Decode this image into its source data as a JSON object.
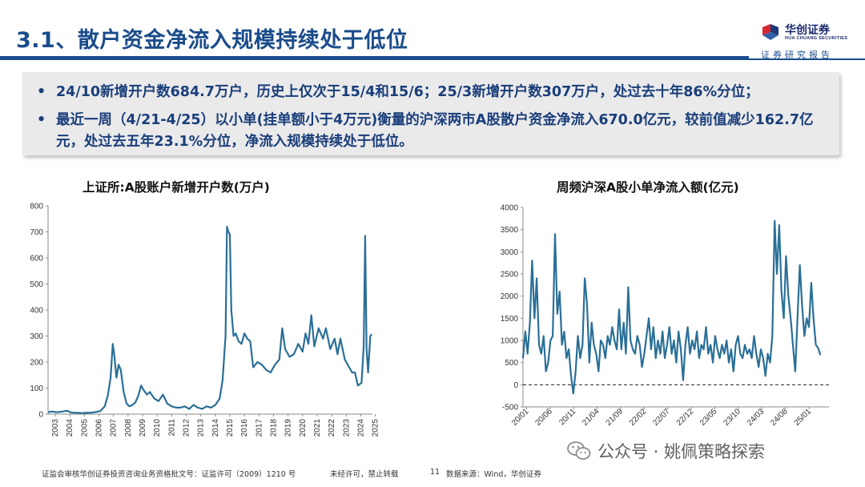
{
  "slide": {
    "title": "3.1、散户资金净流入规模持续处于低位",
    "report_tag": "证券研究报告"
  },
  "logo": {
    "name_cn": "华创证券",
    "name_en": "HUA CHUANG SECURITIES"
  },
  "bullets": [
    "24/10新增开户数684.7万户，历史上仅次于15/4和15/6；25/3新增开户数307万户，处过去十年86%分位；",
    "最近一周（4/21-4/25）以小单(挂单额小于4万元)衡量的沪深两市A股散户资金净流入670.0亿元，较前值减少162.7亿元，处过去五年23.1%分位，净流入规模持续处于低位。"
  ],
  "chart_data": [
    {
      "type": "line",
      "title": "上证所:A股账户新增开户数(万户)",
      "xlabel": "",
      "ylabel": "",
      "ylim": [
        0,
        800
      ],
      "yticks": [
        "0",
        "100",
        "200",
        "300",
        "400",
        "500",
        "600",
        "700",
        "800"
      ],
      "xticks": [
        "2003",
        "2004",
        "2005",
        "2006",
        "2007",
        "2008",
        "2009",
        "2010",
        "2011",
        "2012",
        "2013",
        "2014",
        "2015",
        "2016",
        "2017",
        "2018",
        "2019",
        "2020",
        "2021",
        "2022",
        "2023",
        "2024",
        "2025"
      ],
      "x_range": [
        2003,
        2025.3
      ],
      "color": "#2a6f97",
      "series": [
        {
          "name": "新增开户数",
          "points": [
            [
              2003.0,
              8
            ],
            [
              2003.3,
              10
            ],
            [
              2003.6,
              7
            ],
            [
              2004.0,
              10
            ],
            [
              2004.3,
              13
            ],
            [
              2004.6,
              6
            ],
            [
              2005.0,
              5
            ],
            [
              2005.3,
              4
            ],
            [
              2005.6,
              5
            ],
            [
              2006.0,
              6
            ],
            [
              2006.3,
              8
            ],
            [
              2006.6,
              12
            ],
            [
              2006.9,
              30
            ],
            [
              2007.1,
              70
            ],
            [
              2007.3,
              140
            ],
            [
              2007.45,
              270
            ],
            [
              2007.55,
              230
            ],
            [
              2007.7,
              140
            ],
            [
              2007.85,
              190
            ],
            [
              2008.0,
              170
            ],
            [
              2008.2,
              85
            ],
            [
              2008.4,
              40
            ],
            [
              2008.6,
              30
            ],
            [
              2008.8,
              35
            ],
            [
              2009.0,
              45
            ],
            [
              2009.2,
              70
            ],
            [
              2009.4,
              110
            ],
            [
              2009.6,
              90
            ],
            [
              2009.8,
              75
            ],
            [
              2010.0,
              85
            ],
            [
              2010.3,
              60
            ],
            [
              2010.6,
              50
            ],
            [
              2010.9,
              75
            ],
            [
              2011.2,
              40
            ],
            [
              2011.5,
              30
            ],
            [
              2011.8,
              25
            ],
            [
              2012.1,
              25
            ],
            [
              2012.4,
              30
            ],
            [
              2012.7,
              20
            ],
            [
              2013.0,
              35
            ],
            [
              2013.3,
              25
            ],
            [
              2013.6,
              20
            ],
            [
              2013.9,
              30
            ],
            [
              2014.2,
              25
            ],
            [
              2014.5,
              35
            ],
            [
              2014.8,
              60
            ],
            [
              2015.0,
              130
            ],
            [
              2015.2,
              300
            ],
            [
              2015.3,
              720
            ],
            [
              2015.4,
              700
            ],
            [
              2015.5,
              690
            ],
            [
              2015.6,
              400
            ],
            [
              2015.75,
              300
            ],
            [
              2015.9,
              310
            ],
            [
              2016.1,
              280
            ],
            [
              2016.3,
              270
            ],
            [
              2016.5,
              310
            ],
            [
              2016.7,
              290
            ],
            [
              2016.9,
              280
            ],
            [
              2017.1,
              180
            ],
            [
              2017.4,
              200
            ],
            [
              2017.7,
              190
            ],
            [
              2018.0,
              170
            ],
            [
              2018.3,
              160
            ],
            [
              2018.6,
              190
            ],
            [
              2018.9,
              210
            ],
            [
              2019.1,
              330
            ],
            [
              2019.3,
              250
            ],
            [
              2019.6,
              220
            ],
            [
              2019.9,
              230
            ],
            [
              2020.2,
              270
            ],
            [
              2020.5,
              240
            ],
            [
              2020.7,
              310
            ],
            [
              2020.9,
              270
            ],
            [
              2021.1,
              380
            ],
            [
              2021.3,
              260
            ],
            [
              2021.6,
              330
            ],
            [
              2021.9,
              290
            ],
            [
              2022.1,
              330
            ],
            [
              2022.4,
              250
            ],
            [
              2022.7,
              290
            ],
            [
              2022.9,
              230
            ],
            [
              2023.1,
              290
            ],
            [
              2023.4,
              210
            ],
            [
              2023.7,
              180
            ],
            [
              2023.9,
              160
            ],
            [
              2024.1,
              160
            ],
            [
              2024.3,
              110
            ],
            [
              2024.55,
              120
            ],
            [
              2024.7,
              260
            ],
            [
              2024.8,
              685
            ],
            [
              2024.9,
              250
            ],
            [
              2025.0,
              160
            ],
            [
              2025.15,
              300
            ],
            [
              2025.25,
              307
            ]
          ]
        }
      ]
    },
    {
      "type": "line",
      "title": "周频沪深A股小单净流入额(亿元)",
      "xlabel": "",
      "ylabel": "",
      "ylim": [
        -500,
        4000
      ],
      "yticks": [
        "-500",
        "0",
        "500",
        "1000",
        "1500",
        "2000",
        "2500",
        "3000",
        "3500",
        "4000"
      ],
      "xticks": [
        "20/01",
        "20/06",
        "20/11",
        "21/04",
        "21/09",
        "22/02",
        "22/07",
        "22/12",
        "23/05",
        "23/10",
        "24/03",
        "24/08",
        "25/01"
      ],
      "x_range": [
        0,
        5.35
      ],
      "reference_line": 0,
      "color": "#2a6f97",
      "series": [
        {
          "name": "小单净流入额",
          "points": [
            [
              0.0,
              600
            ],
            [
              0.04,
              1200
            ],
            [
              0.08,
              700
            ],
            [
              0.12,
              1400
            ],
            [
              0.16,
              2800
            ],
            [
              0.2,
              1500
            ],
            [
              0.24,
              2400
            ],
            [
              0.28,
              900
            ],
            [
              0.32,
              700
            ],
            [
              0.36,
              1100
            ],
            [
              0.4,
              300
            ],
            [
              0.44,
              500
            ],
            [
              0.48,
              1000
            ],
            [
              0.52,
              1100
            ],
            [
              0.56,
              3400
            ],
            [
              0.6,
              1600
            ],
            [
              0.64,
              2100
            ],
            [
              0.68,
              900
            ],
            [
              0.72,
              1200
            ],
            [
              0.76,
              600
            ],
            [
              0.8,
              800
            ],
            [
              0.84,
              200
            ],
            [
              0.88,
              -200
            ],
            [
              0.92,
              300
            ],
            [
              0.96,
              1100
            ],
            [
              1.0,
              600
            ],
            [
              1.04,
              900
            ],
            [
              1.08,
              2400
            ],
            [
              1.12,
              1800
            ],
            [
              1.16,
              500
            ],
            [
              1.2,
              1400
            ],
            [
              1.24,
              900
            ],
            [
              1.28,
              700
            ],
            [
              1.32,
              300
            ],
            [
              1.36,
              1000
            ],
            [
              1.4,
              900
            ],
            [
              1.44,
              600
            ],
            [
              1.48,
              1100
            ],
            [
              1.52,
              900
            ],
            [
              1.56,
              1300
            ],
            [
              1.6,
              1000
            ],
            [
              1.64,
              800
            ],
            [
              1.68,
              1700
            ],
            [
              1.72,
              800
            ],
            [
              1.76,
              1400
            ],
            [
              1.8,
              700
            ],
            [
              1.84,
              2200
            ],
            [
              1.88,
              1000
            ],
            [
              1.92,
              800
            ],
            [
              1.96,
              700
            ],
            [
              2.0,
              1100
            ],
            [
              2.04,
              900
            ],
            [
              2.08,
              400
            ],
            [
              2.12,
              700
            ],
            [
              2.16,
              1100
            ],
            [
              2.2,
              1500
            ],
            [
              2.24,
              800
            ],
            [
              2.28,
              1300
            ],
            [
              2.32,
              600
            ],
            [
              2.36,
              1000
            ],
            [
              2.4,
              700
            ],
            [
              2.44,
              1200
            ],
            [
              2.48,
              600
            ],
            [
              2.52,
              900
            ],
            [
              2.56,
              1300
            ],
            [
              2.6,
              700
            ],
            [
              2.64,
              1000
            ],
            [
              2.68,
              500
            ],
            [
              2.72,
              1200
            ],
            [
              2.76,
              800
            ],
            [
              2.8,
              100
            ],
            [
              2.84,
              900
            ],
            [
              2.88,
              1300
            ],
            [
              2.92,
              700
            ],
            [
              2.96,
              1000
            ],
            [
              3.0,
              800
            ],
            [
              3.04,
              1200
            ],
            [
              3.08,
              600
            ],
            [
              3.12,
              900
            ],
            [
              3.16,
              800
            ],
            [
              3.2,
              1300
            ],
            [
              3.24,
              700
            ],
            [
              3.28,
              900
            ],
            [
              3.32,
              500
            ],
            [
              3.36,
              1100
            ],
            [
              3.4,
              800
            ],
            [
              3.44,
              600
            ],
            [
              3.48,
              900
            ],
            [
              3.52,
              700
            ],
            [
              3.56,
              1000
            ],
            [
              3.6,
              500
            ],
            [
              3.64,
              800
            ],
            [
              3.68,
              300
            ],
            [
              3.72,
              900
            ],
            [
              3.76,
              1100
            ],
            [
              3.8,
              700
            ],
            [
              3.84,
              600
            ],
            [
              3.88,
              900
            ],
            [
              3.92,
              700
            ],
            [
              3.96,
              800
            ],
            [
              4.0,
              600
            ],
            [
              4.04,
              1100
            ],
            [
              4.08,
              700
            ],
            [
              4.12,
              400
            ],
            [
              4.16,
              800
            ],
            [
              4.2,
              600
            ],
            [
              4.24,
              200
            ],
            [
              4.28,
              700
            ],
            [
              4.32,
              500
            ],
            [
              4.36,
              1100
            ],
            [
              4.4,
              3700
            ],
            [
              4.44,
              2500
            ],
            [
              4.48,
              3600
            ],
            [
              4.52,
              2100
            ],
            [
              4.56,
              1500
            ],
            [
              4.6,
              2900
            ],
            [
              4.64,
              2000
            ],
            [
              4.68,
              1500
            ],
            [
              4.72,
              900
            ],
            [
              4.76,
              300
            ],
            [
              4.8,
              1500
            ],
            [
              4.84,
              2700
            ],
            [
              4.88,
              1800
            ],
            [
              4.92,
              1100
            ],
            [
              4.96,
              1500
            ],
            [
              5.0,
              1300
            ],
            [
              5.04,
              2300
            ],
            [
              5.08,
              1500
            ],
            [
              5.12,
              900
            ],
            [
              5.16,
              830
            ],
            [
              5.2,
              670
            ]
          ]
        }
      ]
    }
  ],
  "footer": {
    "license": "证监会审核华创证券投资咨询业务资格批文号：证监许可（2009）1210 号",
    "notice": "未经许可，禁止转载",
    "page": "11",
    "source": "数据来源：Wind，华创证券"
  },
  "watermark": {
    "text": "公众号 · 姚佩策略探索"
  },
  "colors": {
    "brand_blue": "#1b4d8e",
    "line_blue": "#2a6f97",
    "logo_red": "#d7282f"
  }
}
